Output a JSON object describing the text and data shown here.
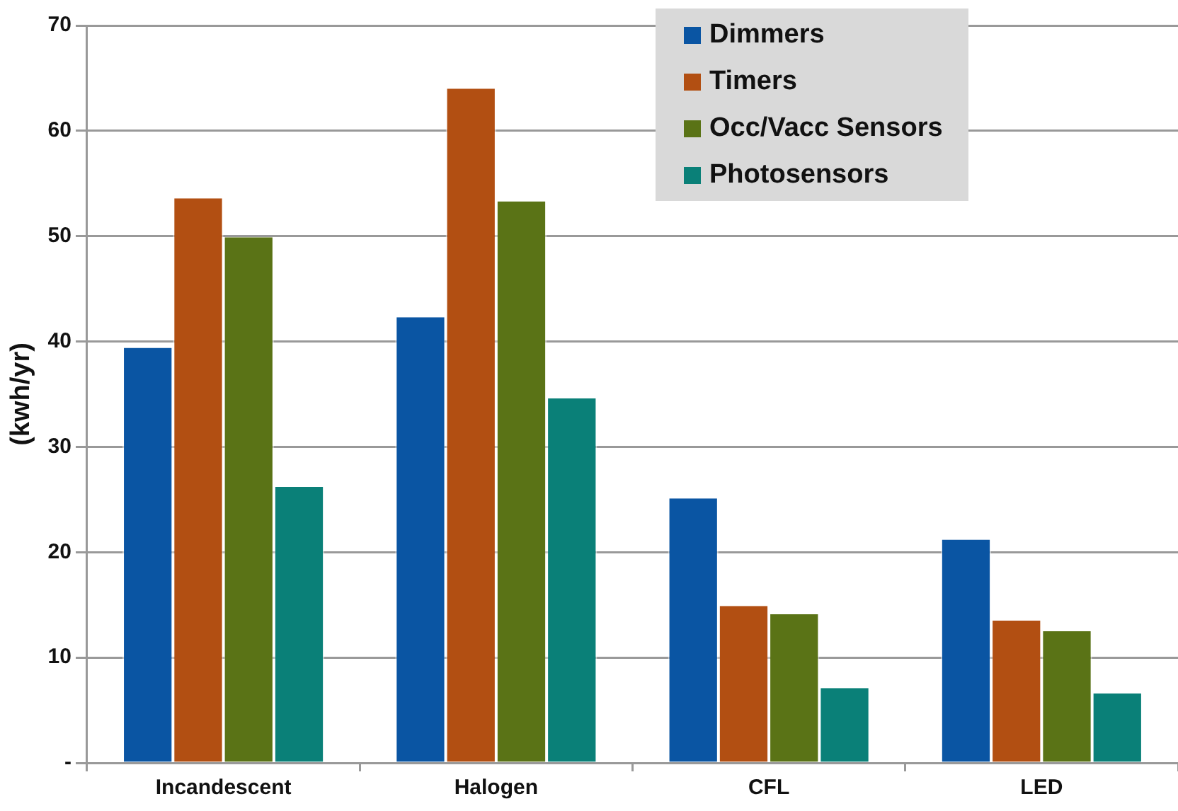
{
  "chart_data": {
    "type": "bar",
    "ylabel": "(kwh/yr)",
    "categories": [
      "Incandescent",
      "Halogen",
      "CFL",
      "LED"
    ],
    "series": [
      {
        "name": "Dimmers",
        "color": "#0a55a3",
        "values": [
          39.4,
          42.3,
          25.1,
          21.2
        ]
      },
      {
        "name": "Timers",
        "color": "#b24f12",
        "values": [
          53.6,
          64.0,
          14.9,
          13.5
        ]
      },
      {
        "name": "Occ/Vacc Sensors",
        "color": "#5a7316",
        "values": [
          49.9,
          53.3,
          14.1,
          12.5
        ]
      },
      {
        "name": "Photosensors",
        "color": "#0a8078",
        "values": [
          26.2,
          34.6,
          7.1,
          6.6
        ]
      }
    ],
    "ylim": [
      0,
      70
    ],
    "yticks": [
      {
        "value": 0,
        "label": "-"
      },
      10,
      20,
      30,
      40,
      50,
      60,
      70
    ],
    "grid": "y",
    "legend": "top right"
  }
}
